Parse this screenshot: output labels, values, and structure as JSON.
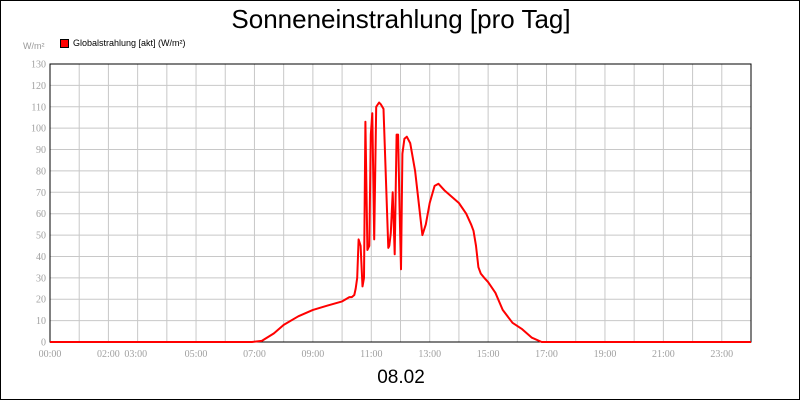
{
  "chart_data": {
    "type": "line",
    "title": "Sonneneinstrahlung [pro Tag]",
    "date_label": "08.02",
    "unit_label": "W/m²",
    "ylim": [
      0,
      130
    ],
    "y_ticks": [
      0,
      10,
      20,
      30,
      40,
      50,
      60,
      70,
      80,
      90,
      100,
      110,
      120,
      130
    ],
    "xlim": [
      "00:00",
      "24:00"
    ],
    "x_tick_labels": [
      "00:00",
      "02:00",
      "03:00",
      "05:00",
      "07:00",
      "09:00",
      "11:00",
      "13:00",
      "15:00",
      "17:00",
      "19:00",
      "21:00",
      "23:00"
    ],
    "grid": true,
    "legend_position": "top-left",
    "colors": {
      "series": "#ff0000",
      "grid": "#c8c8c8"
    },
    "series": [
      {
        "name": "Globalstrahlung [akt] (W/m²)",
        "x": [
          "00:00",
          "06:55",
          "07:15",
          "07:40",
          "08:00",
          "08:30",
          "09:00",
          "09:30",
          "10:00",
          "10:15",
          "10:20",
          "10:25",
          "10:28",
          "10:31",
          "10:34",
          "10:38",
          "10:42",
          "10:45",
          "10:48",
          "10:52",
          "10:56",
          "10:59",
          "11:02",
          "11:06",
          "11:10",
          "11:16",
          "11:20",
          "11:25",
          "11:35",
          "11:37",
          "11:40",
          "11:44",
          "11:48",
          "11:52",
          "11:55",
          "11:58",
          "12:01",
          "12:04",
          "12:08",
          "12:13",
          "12:20",
          "12:30",
          "12:45",
          "12:52",
          "13:00",
          "13:10",
          "13:18",
          "13:30",
          "13:45",
          "14:00",
          "14:15",
          "14:25",
          "14:30",
          "14:35",
          "14:40",
          "14:45",
          "14:52",
          "15:00",
          "15:15",
          "15:30",
          "15:50",
          "16:10",
          "16:30",
          "16:50",
          "16:55",
          "17:00",
          "17:10",
          "17:25",
          "17:35",
          "17:45",
          "18:00",
          "24:00"
        ],
        "values": [
          0,
          0,
          0.5,
          4,
          8,
          12,
          15,
          17,
          19,
          21,
          21,
          22,
          25,
          30,
          48,
          45,
          26,
          30,
          103,
          43,
          45,
          97,
          107,
          48,
          110,
          112,
          111,
          109,
          44,
          45,
          51,
          70,
          41,
          97,
          97,
          64,
          34,
          88,
          95,
          96,
          93,
          80,
          50,
          55,
          65,
          73,
          74,
          71,
          68,
          65,
          60,
          55,
          52,
          45,
          35,
          32,
          30,
          28,
          23,
          15,
          9,
          6,
          2,
          0,
          0,
          0,
          0,
          0,
          0,
          0,
          0,
          0
        ]
      }
    ]
  }
}
